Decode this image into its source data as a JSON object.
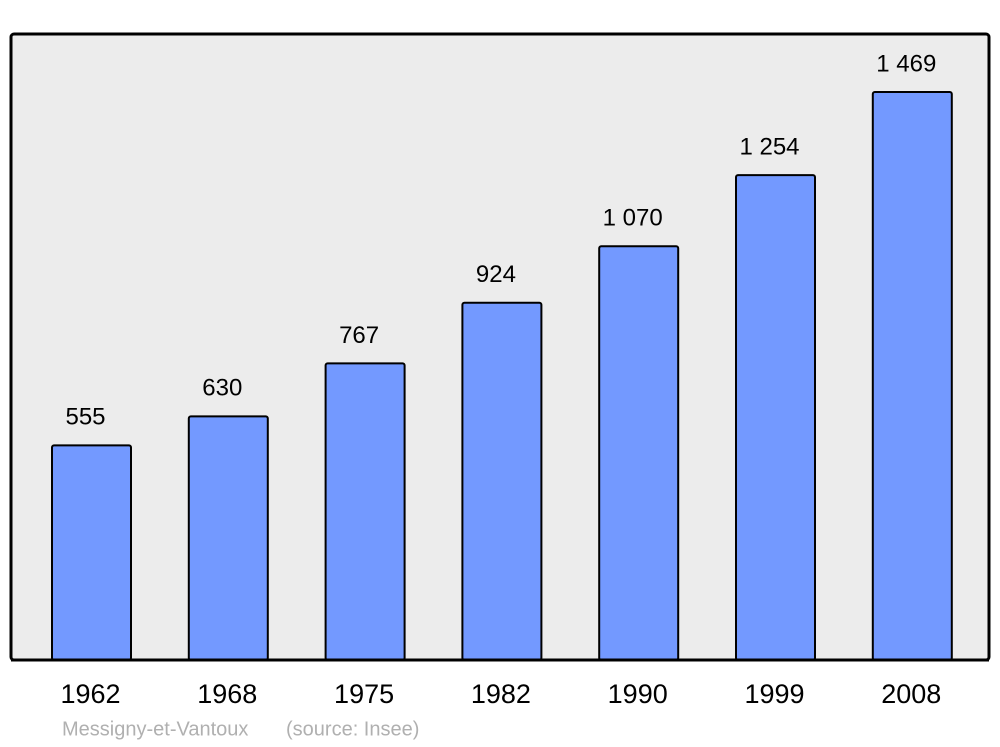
{
  "chart_data": {
    "type": "bar",
    "categories": [
      "1962",
      "1968",
      "1975",
      "1982",
      "1990",
      "1999",
      "2008"
    ],
    "values": [
      555,
      630,
      767,
      924,
      1070,
      1254,
      1469
    ],
    "value_labels": [
      "555",
      "630",
      "767",
      "924",
      "1 070",
      "1 254",
      "1 469"
    ],
    "color": "#7399ff",
    "caption": "Messigny-et-Vantoux",
    "source": "(source: Insee)"
  }
}
